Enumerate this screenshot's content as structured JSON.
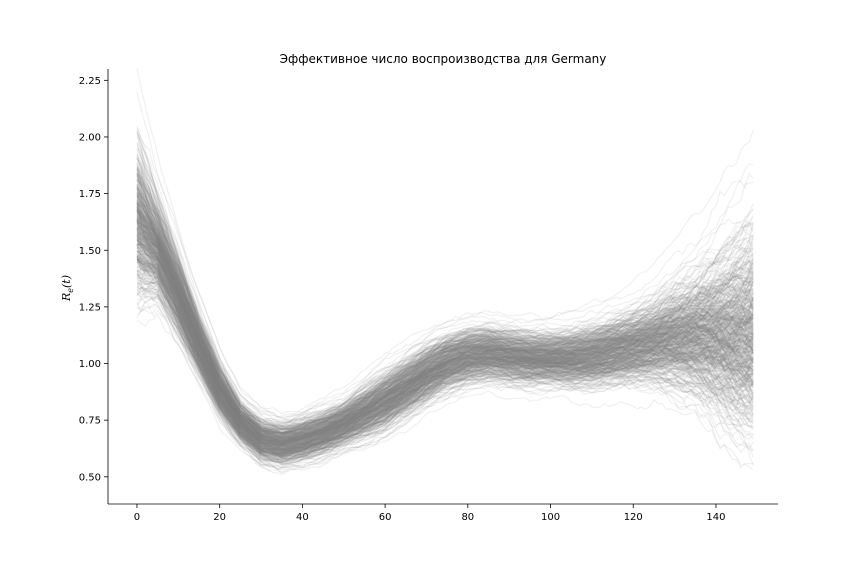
{
  "chart_data": {
    "type": "line",
    "title": "Эффективное число воспроизводства для Germany",
    "xlabel": "",
    "ylabel": "R_e(t)",
    "ylabel_parts": {
      "base": "R",
      "sub": "e",
      "arg": "(t)"
    },
    "xlim": [
      -7,
      155
    ],
    "ylim": [
      0.38,
      2.3
    ],
    "xticks": [
      0,
      20,
      40,
      60,
      80,
      100,
      120,
      140
    ],
    "yticks": [
      0.5,
      0.75,
      1.0,
      1.25,
      1.5,
      1.75,
      2.0,
      2.25
    ],
    "ytick_labels": [
      "0.50",
      "0.75",
      "1.00",
      "1.25",
      "1.50",
      "1.75",
      "2.00",
      "2.25"
    ],
    "grid": false,
    "series_color": "#808080",
    "n_samples": 500,
    "median": {
      "x": [
        0,
        5,
        10,
        15,
        20,
        25,
        30,
        35,
        40,
        45,
        50,
        55,
        60,
        65,
        70,
        75,
        80,
        85,
        90,
        95,
        100,
        105,
        110,
        115,
        120,
        125,
        130,
        135,
        140,
        145,
        149
      ],
      "y": [
        1.62,
        1.5,
        1.3,
        1.08,
        0.88,
        0.74,
        0.66,
        0.64,
        0.66,
        0.69,
        0.73,
        0.78,
        0.83,
        0.89,
        0.95,
        1.0,
        1.03,
        1.04,
        1.03,
        1.02,
        1.02,
        1.02,
        1.03,
        1.05,
        1.07,
        1.09,
        1.11,
        1.12,
        1.12,
        1.12,
        1.12
      ]
    },
    "spread": {
      "x": [
        0,
        5,
        10,
        15,
        20,
        25,
        30,
        35,
        40,
        45,
        50,
        55,
        60,
        65,
        70,
        75,
        80,
        85,
        90,
        95,
        100,
        105,
        110,
        115,
        120,
        125,
        130,
        135,
        140,
        145,
        149
      ],
      "sd": [
        0.16,
        0.1,
        0.08,
        0.06,
        0.05,
        0.04,
        0.04,
        0.04,
        0.04,
        0.04,
        0.04,
        0.045,
        0.05,
        0.05,
        0.05,
        0.05,
        0.05,
        0.05,
        0.05,
        0.05,
        0.05,
        0.055,
        0.06,
        0.065,
        0.07,
        0.08,
        0.1,
        0.12,
        0.15,
        0.18,
        0.2
      ]
    }
  }
}
